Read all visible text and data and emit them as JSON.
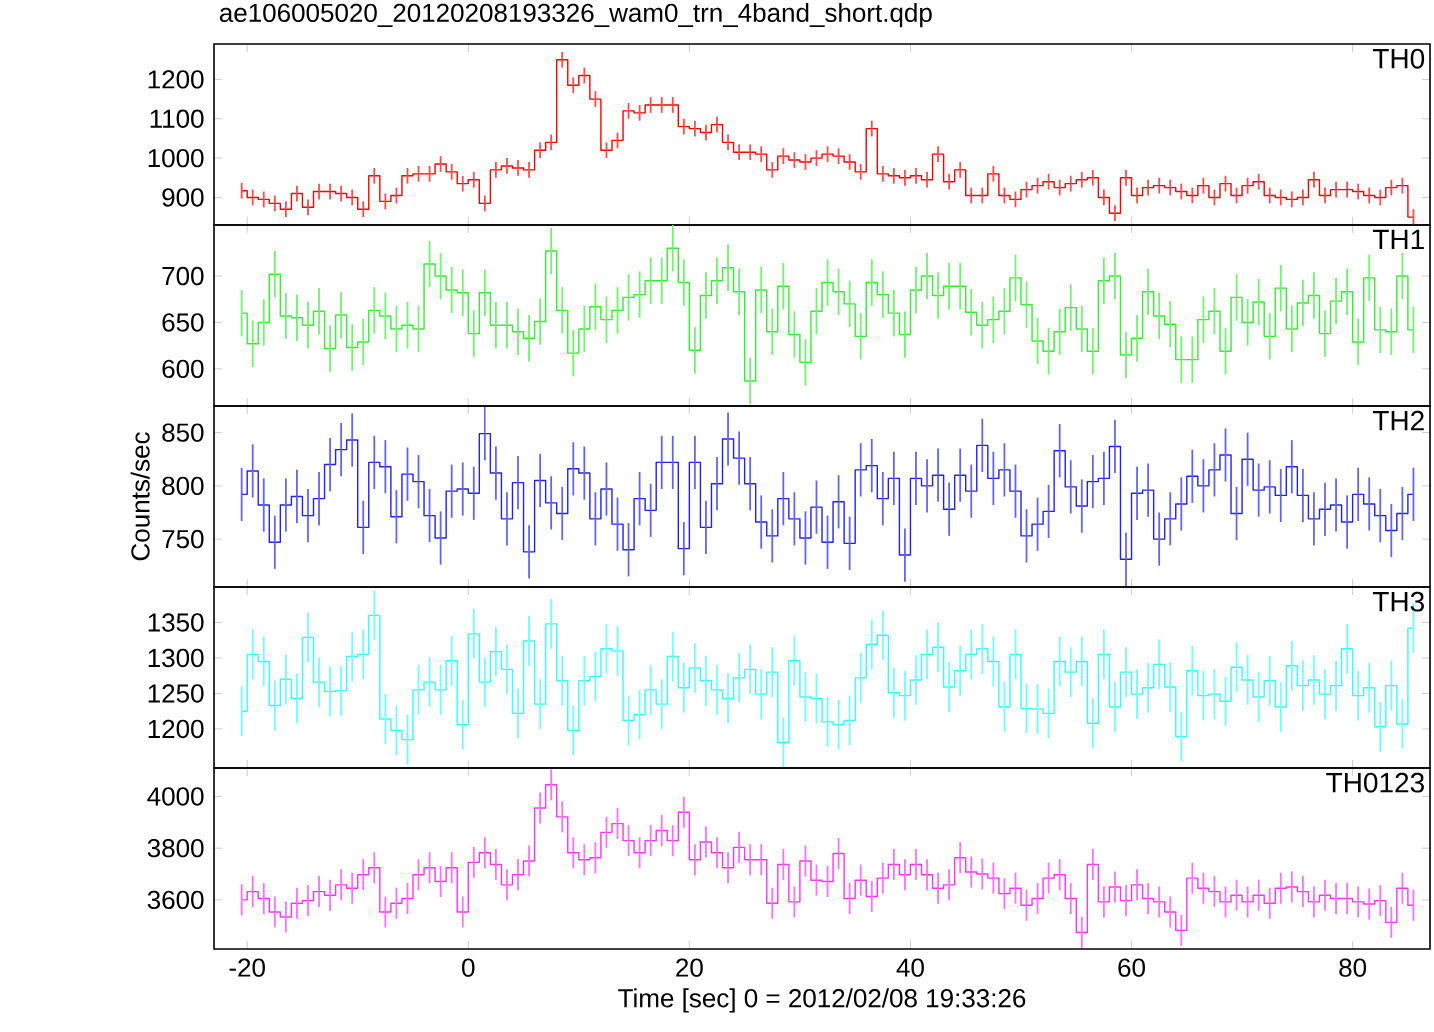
{
  "chart_data": [
    {
      "type": "step",
      "title": "ae106005020_20120208193326_wam0_trn_4band_short.qdp",
      "tick_labels": "y",
      "xlim": [
        -23,
        87
      ],
      "xticks": [
        -20,
        0,
        20,
        40,
        60,
        80
      ],
      "ylim": [
        830,
        1290
      ],
      "yticks": [
        900,
        1000,
        1100,
        1200
      ],
      "x": [
        -20.5,
        -19.5,
        -18.5,
        -17.5,
        -16.5,
        -15.5,
        -14.5,
        -13.5,
        -12.5,
        -11.5,
        -10.5,
        -9.5,
        -8.5,
        -7.5,
        -6.5,
        -5.5,
        -4.5,
        -3.5,
        -2.5,
        -1.5,
        -0.5,
        0.5,
        1.5,
        2.5,
        3.5,
        4.5,
        5.5,
        6.5,
        7.5,
        8.5,
        9.5,
        10.5,
        11.5,
        12.5,
        13.5,
        14.5,
        15.5,
        16.5,
        17.5,
        18.5,
        19.5,
        20.5,
        21.5,
        22.5,
        23.5,
        24.5,
        25.5,
        26.5,
        27.5,
        28.5,
        29.5,
        30.5,
        31.5,
        32.5,
        33.5,
        34.5,
        35.5,
        36.5,
        37.5,
        38.5,
        39.5,
        40.5,
        41.5,
        42.5,
        43.5,
        44.5,
        45.5,
        46.5,
        47.5,
        48.5,
        49.5,
        50.5,
        51.5,
        52.5,
        53.5,
        54.5,
        55.5,
        56.5,
        57.5,
        58.5,
        59.5,
        60.5,
        61.5,
        62.5,
        63.5,
        64.5,
        65.5,
        66.5,
        67.5,
        68.5,
        69.5,
        70.5,
        71.5,
        72.5,
        73.5,
        74.5,
        75.5,
        76.5,
        77.5,
        78.5,
        79.5,
        80.5,
        81.5,
        82.5,
        83.5,
        84.5,
        85.5
      ],
      "series": [
        {
          "name": "TH0",
          "color": "#ff0000",
          "values": [
            917,
            900,
            895,
            885,
            870,
            910,
            875,
            915,
            915,
            910,
            900,
            870,
            955,
            890,
            905,
            955,
            960,
            960,
            985,
            965,
            935,
            945,
            885,
            970,
            980,
            975,
            970,
            1020,
            1040,
            1250,
            1185,
            1210,
            1150,
            1020,
            1045,
            1120,
            1115,
            1135,
            1135,
            1135,
            1080,
            1075,
            1065,
            1085,
            1040,
            1015,
            1015,
            1010,
            970,
            1005,
            995,
            990,
            1000,
            1010,
            1005,
            990,
            965,
            1075,
            960,
            955,
            950,
            955,
            945,
            1010,
            940,
            970,
            905,
            905,
            960,
            905,
            895,
            920,
            930,
            940,
            925,
            935,
            945,
            950,
            900,
            860,
            950,
            905,
            925,
            930,
            925,
            915,
            905,
            930,
            900,
            935,
            905,
            930,
            940,
            905,
            900,
            895,
            900,
            945,
            905,
            920,
            920,
            915,
            905,
            900,
            925,
            930,
            850
          ],
          "errors": [
            20,
            20,
            20,
            20,
            20,
            20,
            20,
            20,
            20,
            20,
            20,
            20,
            20,
            20,
            20,
            20,
            20,
            20,
            20,
            20,
            20,
            20,
            20,
            20,
            20,
            20,
            20,
            20,
            20,
            20,
            20,
            20,
            20,
            20,
            20,
            20,
            20,
            20,
            20,
            20,
            20,
            20,
            20,
            20,
            20,
            20,
            20,
            20,
            20,
            20,
            20,
            20,
            20,
            20,
            20,
            20,
            20,
            20,
            20,
            20,
            20,
            20,
            20,
            20,
            20,
            20,
            20,
            20,
            20,
            20,
            20,
            20,
            20,
            20,
            20,
            20,
            20,
            20,
            20,
            20,
            20,
            20,
            20,
            20,
            20,
            20,
            20,
            20,
            20,
            20,
            20,
            20,
            20,
            20,
            20,
            20,
            20,
            20,
            20,
            20,
            20,
            20,
            20,
            20,
            20,
            20,
            20
          ]
        }
      ]
    },
    {
      "type": "step",
      "tick_labels": "y",
      "xlim": [
        -23,
        87
      ],
      "xticks": [
        -20,
        0,
        20,
        40,
        60,
        80
      ],
      "ylim": [
        560,
        755
      ],
      "yticks": [
        600,
        650,
        700
      ],
      "x": [
        -20.5,
        -19.5,
        -18.5,
        -17.5,
        -16.5,
        -15.5,
        -14.5,
        -13.5,
        -12.5,
        -11.5,
        -10.5,
        -9.5,
        -8.5,
        -7.5,
        -6.5,
        -5.5,
        -4.5,
        -3.5,
        -2.5,
        -1.5,
        -0.5,
        0.5,
        1.5,
        2.5,
        3.5,
        4.5,
        5.5,
        6.5,
        7.5,
        8.5,
        9.5,
        10.5,
        11.5,
        12.5,
        13.5,
        14.5,
        15.5,
        16.5,
        17.5,
        18.5,
        19.5,
        20.5,
        21.5,
        22.5,
        23.5,
        24.5,
        25.5,
        26.5,
        27.5,
        28.5,
        29.5,
        30.5,
        31.5,
        32.5,
        33.5,
        34.5,
        35.5,
        36.5,
        37.5,
        38.5,
        39.5,
        40.5,
        41.5,
        42.5,
        43.5,
        44.5,
        45.5,
        46.5,
        47.5,
        48.5,
        49.5,
        50.5,
        51.5,
        52.5,
        53.5,
        54.5,
        55.5,
        56.5,
        57.5,
        58.5,
        59.5,
        60.5,
        61.5,
        62.5,
        63.5,
        64.5,
        65.5,
        66.5,
        67.5,
        68.5,
        69.5,
        70.5,
        71.5,
        72.5,
        73.5,
        74.5,
        75.5,
        76.5,
        77.5,
        78.5,
        79.5,
        80.5,
        81.5,
        82.5,
        83.5,
        84.5,
        85.5
      ],
      "series": [
        {
          "name": "TH1",
          "color": "#33ee33",
          "values": [
            660,
            627,
            650,
            702,
            657,
            655,
            647,
            662,
            622,
            658,
            623,
            629,
            663,
            657,
            643,
            647,
            643,
            713,
            700,
            685,
            682,
            638,
            682,
            647,
            647,
            640,
            633,
            651,
            727,
            663,
            617,
            643,
            667,
            653,
            663,
            677,
            680,
            695,
            695,
            730,
            693,
            620,
            679,
            695,
            709,
            683,
            587,
            685,
            640,
            689,
            637,
            607,
            662,
            693,
            683,
            670,
            635,
            693,
            680,
            660,
            637,
            685,
            700,
            679,
            689,
            689,
            661,
            647,
            653,
            662,
            698,
            669,
            630,
            619,
            640,
            666,
            643,
            619,
            695,
            700,
            615,
            633,
            683,
            657,
            648,
            610,
            610,
            653,
            662,
            619,
            677,
            650,
            672,
            635,
            687,
            643,
            671,
            679,
            638,
            673,
            683,
            629,
            698,
            642,
            640,
            700,
            642
          ],
          "errors": [
            25,
            25,
            25,
            25,
            25,
            25,
            25,
            25,
            25,
            25,
            25,
            25,
            25,
            25,
            25,
            25,
            25,
            25,
            25,
            25,
            25,
            25,
            25,
            25,
            25,
            25,
            25,
            25,
            25,
            25,
            25,
            25,
            25,
            25,
            25,
            25,
            25,
            25,
            25,
            25,
            25,
            25,
            25,
            25,
            25,
            25,
            25,
            25,
            25,
            25,
            25,
            25,
            25,
            25,
            25,
            25,
            25,
            25,
            25,
            25,
            25,
            25,
            25,
            25,
            25,
            25,
            25,
            25,
            25,
            25,
            25,
            25,
            25,
            25,
            25,
            25,
            25,
            25,
            25,
            25,
            25,
            25,
            25,
            25,
            25,
            25,
            25,
            25,
            25,
            25,
            25,
            25,
            25,
            25,
            25,
            25,
            25,
            25,
            25,
            25,
            25,
            25,
            25,
            25,
            25,
            25,
            25
          ]
        }
      ]
    },
    {
      "type": "step",
      "tick_labels": "y",
      "ylabel": "Counts/sec",
      "xlim": [
        -23,
        87
      ],
      "xticks": [
        -20,
        0,
        20,
        40,
        60,
        80
      ],
      "ylim": [
        705,
        875
      ],
      "yticks": [
        750,
        800,
        850
      ],
      "x": [
        -20.5,
        -19.5,
        -18.5,
        -17.5,
        -16.5,
        -15.5,
        -14.5,
        -13.5,
        -12.5,
        -11.5,
        -10.5,
        -9.5,
        -8.5,
        -7.5,
        -6.5,
        -5.5,
        -4.5,
        -3.5,
        -2.5,
        -1.5,
        -0.5,
        0.5,
        1.5,
        2.5,
        3.5,
        4.5,
        5.5,
        6.5,
        7.5,
        8.5,
        9.5,
        10.5,
        11.5,
        12.5,
        13.5,
        14.5,
        15.5,
        16.5,
        17.5,
        18.5,
        19.5,
        20.5,
        21.5,
        22.5,
        23.5,
        24.5,
        25.5,
        26.5,
        27.5,
        28.5,
        29.5,
        30.5,
        31.5,
        32.5,
        33.5,
        34.5,
        35.5,
        36.5,
        37.5,
        38.5,
        39.5,
        40.5,
        41.5,
        42.5,
        43.5,
        44.5,
        45.5,
        46.5,
        47.5,
        48.5,
        49.5,
        50.5,
        51.5,
        52.5,
        53.5,
        54.5,
        55.5,
        56.5,
        57.5,
        58.5,
        59.5,
        60.5,
        61.5,
        62.5,
        63.5,
        64.5,
        65.5,
        66.5,
        67.5,
        68.5,
        69.5,
        70.5,
        71.5,
        72.5,
        73.5,
        74.5,
        75.5,
        76.5,
        77.5,
        78.5,
        79.5,
        80.5,
        81.5,
        82.5,
        83.5,
        84.5,
        85.5
      ],
      "series": [
        {
          "name": "TH2",
          "color": "#2222ee",
          "values": [
            792,
            814,
            782,
            747,
            782,
            790,
            772,
            788,
            820,
            834,
            843,
            761,
            822,
            818,
            771,
            811,
            804,
            772,
            751,
            795,
            797,
            793,
            849,
            812,
            769,
            803,
            738,
            805,
            784,
            774,
            816,
            812,
            769,
            797,
            764,
            740,
            788,
            777,
            822,
            822,
            741,
            822,
            761,
            802,
            844,
            826,
            802,
            766,
            753,
            788,
            769,
            751,
            780,
            747,
            785,
            746,
            815,
            819,
            788,
            807,
            735,
            807,
            800,
            810,
            778,
            810,
            795,
            838,
            807,
            815,
            795,
            753,
            764,
            776,
            833,
            799,
            781,
            804,
            807,
            837,
            731,
            793,
            796,
            750,
            769,
            783,
            809,
            800,
            815,
            829,
            774,
            825,
            796,
            799,
            791,
            818,
            791,
            769,
            778,
            782,
            766,
            792,
            783,
            772,
            758,
            774,
            792
          ],
          "errors": [
            25,
            25,
            25,
            25,
            25,
            25,
            25,
            25,
            25,
            25,
            25,
            25,
            25,
            25,
            25,
            25,
            25,
            25,
            25,
            25,
            25,
            25,
            25,
            25,
            25,
            25,
            25,
            25,
            25,
            25,
            25,
            25,
            25,
            25,
            25,
            25,
            25,
            25,
            25,
            25,
            25,
            25,
            25,
            25,
            25,
            25,
            25,
            25,
            25,
            25,
            25,
            25,
            25,
            25,
            25,
            25,
            25,
            25,
            25,
            25,
            25,
            25,
            25,
            25,
            25,
            25,
            25,
            25,
            25,
            25,
            25,
            25,
            25,
            25,
            25,
            25,
            25,
            25,
            25,
            25,
            25,
            25,
            25,
            25,
            25,
            25,
            25,
            25,
            25,
            25,
            25,
            25,
            25,
            25,
            25,
            25,
            25,
            25,
            25,
            25,
            25,
            25,
            25,
            25,
            25,
            25,
            25
          ]
        }
      ]
    },
    {
      "type": "step",
      "tick_labels": "y",
      "xlim": [
        -23,
        87
      ],
      "xticks": [
        -20,
        0,
        20,
        40,
        60,
        80
      ],
      "ylim": [
        1145,
        1400
      ],
      "yticks": [
        1200,
        1250,
        1300,
        1350
      ],
      "x": [
        -20.5,
        -19.5,
        -18.5,
        -17.5,
        -16.5,
        -15.5,
        -14.5,
        -13.5,
        -12.5,
        -11.5,
        -10.5,
        -9.5,
        -8.5,
        -7.5,
        -6.5,
        -5.5,
        -4.5,
        -3.5,
        -2.5,
        -1.5,
        -0.5,
        0.5,
        1.5,
        2.5,
        3.5,
        4.5,
        5.5,
        6.5,
        7.5,
        8.5,
        9.5,
        10.5,
        11.5,
        12.5,
        13.5,
        14.5,
        15.5,
        16.5,
        17.5,
        18.5,
        19.5,
        20.5,
        21.5,
        22.5,
        23.5,
        24.5,
        25.5,
        26.5,
        27.5,
        28.5,
        29.5,
        30.5,
        31.5,
        32.5,
        33.5,
        34.5,
        35.5,
        36.5,
        37.5,
        38.5,
        39.5,
        40.5,
        41.5,
        42.5,
        43.5,
        44.5,
        45.5,
        46.5,
        47.5,
        48.5,
        49.5,
        50.5,
        51.5,
        52.5,
        53.5,
        54.5,
        55.5,
        56.5,
        57.5,
        58.5,
        59.5,
        60.5,
        61.5,
        62.5,
        63.5,
        64.5,
        65.5,
        66.5,
        67.5,
        68.5,
        69.5,
        70.5,
        71.5,
        72.5,
        73.5,
        74.5,
        75.5,
        76.5,
        77.5,
        78.5,
        79.5,
        80.5,
        81.5,
        82.5,
        83.5,
        84.5,
        85.5
      ],
      "series": [
        {
          "name": "TH3",
          "color": "#33ffff",
          "values": [
            1225,
            1305,
            1295,
            1233,
            1270,
            1243,
            1329,
            1266,
            1253,
            1254,
            1302,
            1305,
            1360,
            1214,
            1198,
            1185,
            1255,
            1266,
            1255,
            1296,
            1206,
            1334,
            1266,
            1309,
            1284,
            1222,
            1324,
            1235,
            1348,
            1268,
            1198,
            1268,
            1274,
            1313,
            1310,
            1212,
            1220,
            1255,
            1235,
            1302,
            1258,
            1286,
            1268,
            1255,
            1243,
            1272,
            1284,
            1249,
            1280,
            1181,
            1296,
            1245,
            1243,
            1210,
            1206,
            1212,
            1272,
            1319,
            1332,
            1251,
            1247,
            1269,
            1305,
            1315,
            1259,
            1282,
            1305,
            1313,
            1295,
            1231,
            1305,
            1229,
            1228,
            1222,
            1295,
            1280,
            1295,
            1208,
            1305,
            1231,
            1280,
            1249,
            1258,
            1291,
            1259,
            1189,
            1282,
            1247,
            1249,
            1239,
            1287,
            1269,
            1245,
            1268,
            1231,
            1289,
            1261,
            1269,
            1249,
            1261,
            1313,
            1247,
            1258,
            1203,
            1261,
            1207,
            1342
          ],
          "errors": [
            35,
            35,
            35,
            35,
            35,
            35,
            35,
            35,
            35,
            35,
            35,
            35,
            35,
            35,
            35,
            35,
            35,
            35,
            35,
            35,
            35,
            35,
            35,
            35,
            35,
            35,
            35,
            35,
            35,
            35,
            35,
            35,
            35,
            35,
            35,
            35,
            35,
            35,
            35,
            35,
            35,
            35,
            35,
            35,
            35,
            35,
            35,
            35,
            35,
            35,
            35,
            35,
            35,
            35,
            35,
            35,
            35,
            35,
            35,
            35,
            35,
            35,
            35,
            35,
            35,
            35,
            35,
            35,
            35,
            35,
            35,
            35,
            35,
            35,
            35,
            35,
            35,
            35,
            35,
            35,
            35,
            35,
            35,
            35,
            35,
            35,
            35,
            35,
            35,
            35,
            35,
            35,
            35,
            35,
            35,
            35,
            35,
            35,
            35,
            35,
            35,
            35,
            35,
            35,
            35,
            35,
            35
          ]
        }
      ]
    },
    {
      "type": "step",
      "xlabel": "Time [sec] 0 = 2012/02/08 19:33:26",
      "xlim": [
        -23,
        87
      ],
      "xticks": [
        -20,
        0,
        20,
        40,
        60,
        80
      ],
      "ylim": [
        3410,
        4110
      ],
      "yticks": [
        3600,
        3800,
        4000
      ],
      "x": [
        -20.5,
        -19.5,
        -18.5,
        -17.5,
        -16.5,
        -15.5,
        -14.5,
        -13.5,
        -12.5,
        -11.5,
        -10.5,
        -9.5,
        -8.5,
        -7.5,
        -6.5,
        -5.5,
        -4.5,
        -3.5,
        -2.5,
        -1.5,
        -0.5,
        0.5,
        1.5,
        2.5,
        3.5,
        4.5,
        5.5,
        6.5,
        7.5,
        8.5,
        9.5,
        10.5,
        11.5,
        12.5,
        13.5,
        14.5,
        15.5,
        16.5,
        17.5,
        18.5,
        19.5,
        20.5,
        21.5,
        22.5,
        23.5,
        24.5,
        25.5,
        26.5,
        27.5,
        28.5,
        29.5,
        30.5,
        31.5,
        32.5,
        33.5,
        34.5,
        35.5,
        36.5,
        37.5,
        38.5,
        39.5,
        40.5,
        41.5,
        42.5,
        43.5,
        44.5,
        45.5,
        46.5,
        47.5,
        48.5,
        49.5,
        50.5,
        51.5,
        52.5,
        53.5,
        54.5,
        55.5,
        56.5,
        57.5,
        58.5,
        59.5,
        60.5,
        61.5,
        62.5,
        63.5,
        64.5,
        65.5,
        66.5,
        67.5,
        68.5,
        69.5,
        70.5,
        71.5,
        72.5,
        73.5,
        74.5,
        75.5,
        76.5,
        77.5,
        78.5,
        79.5,
        80.5,
        81.5,
        82.5,
        83.5,
        84.5,
        85.5
      ],
      "series": [
        {
          "name": "TH0123",
          "color": "#ff33ff",
          "values": [
            3600,
            3632,
            3605,
            3553,
            3534,
            3587,
            3597,
            3632,
            3618,
            3658,
            3645,
            3697,
            3724,
            3553,
            3587,
            3605,
            3697,
            3724,
            3671,
            3724,
            3553,
            3745,
            3782,
            3737,
            3658,
            3697,
            3750,
            3955,
            4045,
            3921,
            3782,
            3755,
            3763,
            3861,
            3895,
            3829,
            3782,
            3829,
            3868,
            3829,
            3939,
            3755,
            3824,
            3782,
            3724,
            3803,
            3755,
            3755,
            3587,
            3737,
            3592,
            3750,
            3676,
            3671,
            3779,
            3605,
            3676,
            3613,
            3684,
            3737,
            3697,
            3737,
            3697,
            3645,
            3658,
            3763,
            3708,
            3700,
            3684,
            3624,
            3645,
            3579,
            3605,
            3684,
            3697,
            3605,
            3474,
            3737,
            3592,
            3650,
            3597,
            3658,
            3605,
            3592,
            3553,
            3482,
            3684,
            3645,
            3632,
            3592,
            3618,
            3592,
            3618,
            3587,
            3645,
            3650,
            3632,
            3592,
            3618,
            3605,
            3605,
            3592,
            3584,
            3597,
            3513,
            3645,
            3579
          ],
          "errors": [
            60,
            60,
            60,
            60,
            60,
            60,
            60,
            60,
            60,
            60,
            60,
            60,
            60,
            60,
            60,
            60,
            60,
            60,
            60,
            60,
            60,
            60,
            60,
            60,
            60,
            60,
            60,
            60,
            60,
            60,
            60,
            60,
            60,
            60,
            60,
            60,
            60,
            60,
            60,
            60,
            60,
            60,
            60,
            60,
            60,
            60,
            60,
            60,
            60,
            60,
            60,
            60,
            60,
            60,
            60,
            60,
            60,
            60,
            60,
            60,
            60,
            60,
            60,
            60,
            60,
            60,
            60,
            60,
            60,
            60,
            60,
            60,
            60,
            60,
            60,
            60,
            60,
            60,
            60,
            60,
            60,
            60,
            60,
            60,
            60,
            60,
            60,
            60,
            60,
            60,
            60,
            60,
            60,
            60,
            60,
            60,
            60,
            60,
            60,
            60,
            60,
            60,
            60,
            60,
            60,
            60,
            60
          ]
        }
      ]
    }
  ]
}
